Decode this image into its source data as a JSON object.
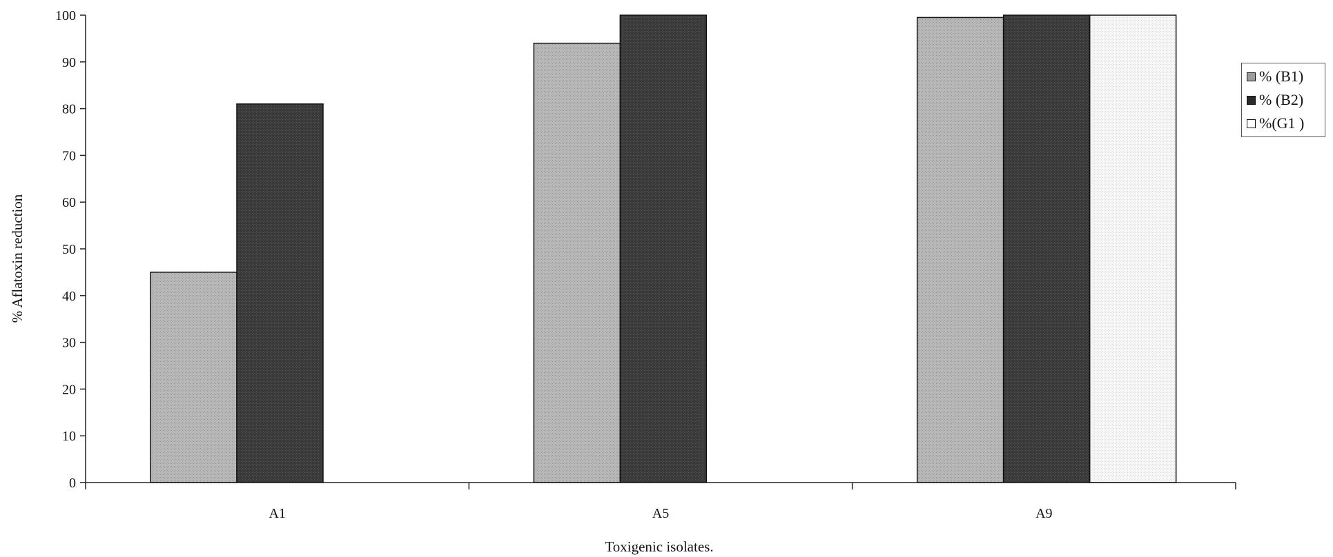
{
  "chart_data": {
    "type": "bar",
    "xlabel": "Toxigenic isolates.",
    "ylabel": "% Aflatoxin reduction",
    "ylim": [
      0,
      100
    ],
    "yticks": [
      0,
      10,
      20,
      30,
      40,
      50,
      60,
      70,
      80,
      90,
      100
    ],
    "categories": [
      "A1",
      "A5",
      "A9"
    ],
    "series": [
      {
        "name": "% (B1)",
        "values": [
          45,
          94,
          99.5
        ],
        "color": "#b3b3b3"
      },
      {
        "name": "% (B2)",
        "values": [
          81,
          100,
          100
        ],
        "color": "#3d3d3d"
      },
      {
        "name": "%(G1 )",
        "values": [
          null,
          null,
          100
        ],
        "color": "#f3f3f3"
      }
    ],
    "grid": false,
    "legend_position": "right"
  }
}
